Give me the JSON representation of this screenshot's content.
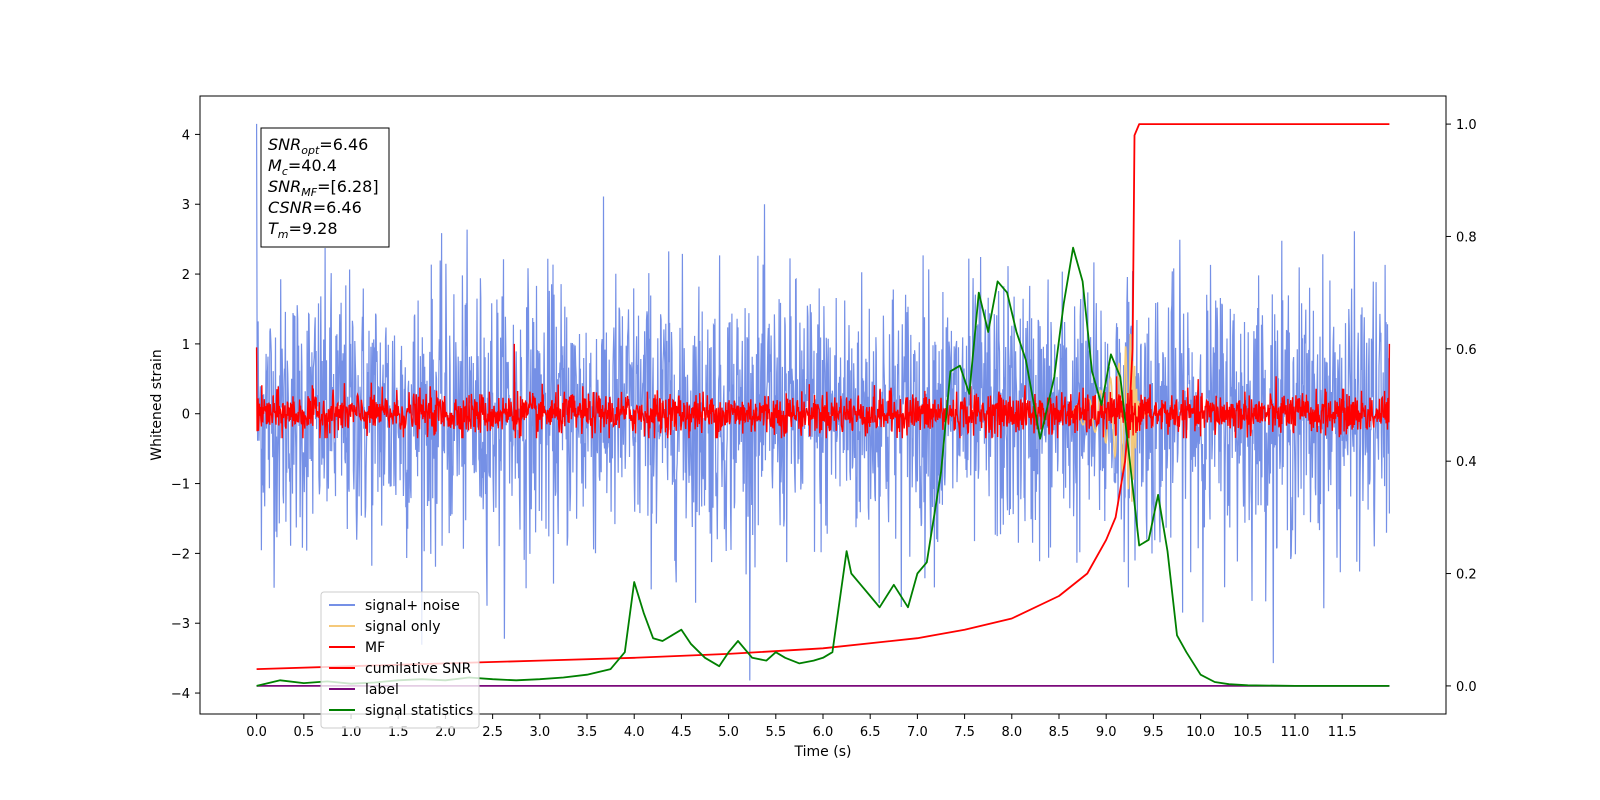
{
  "chart_data": {
    "type": "line",
    "xlabel": "Time (s)",
    "ylabel_left": "Whitened strain",
    "ylabel_right": "",
    "xlim": [
      -0.6,
      12.6
    ],
    "ylim_left": [
      -4.3,
      4.55
    ],
    "ylim_right": [
      -0.05,
      1.05
    ],
    "x_ticks": [
      "0.0",
      "0.5",
      "1.0",
      "1.5",
      "2.0",
      "2.5",
      "3.0",
      "3.5",
      "4.0",
      "4.5",
      "5.0",
      "5.5",
      "6.0",
      "6.5",
      "7.0",
      "7.5",
      "8.0",
      "8.5",
      "9.0",
      "9.5",
      "10.0",
      "10.5",
      "11.0",
      "11.5"
    ],
    "y_ticks_left": [
      "−4",
      "−3",
      "−2",
      "−1",
      "0",
      "1",
      "2",
      "3",
      "4"
    ],
    "y_ticks_right": [
      "0.0",
      "0.2",
      "0.4",
      "0.6",
      "0.8",
      "1.0"
    ],
    "grid": false,
    "legend_position": "lower-left",
    "info_box": {
      "lines": [
        {
          "main": "SNR",
          "sub": "opt",
          "value": "=6.46"
        },
        {
          "main": "M",
          "sub": "c",
          "value": "=40.4"
        },
        {
          "main": "SNR",
          "sub": "MF",
          "value": "=[6.28]"
        },
        {
          "main": "CSNR",
          "sub": "",
          "value": "=6.46"
        },
        {
          "main": "T",
          "sub": "m",
          "value": "=9.28"
        }
      ]
    },
    "series": [
      {
        "name": "signal+ noise",
        "color": "#7590e6",
        "axis": "left",
        "style": "noise",
        "x_range": [
          0,
          12
        ],
        "amplitude_std": 1.0
      },
      {
        "name": "signal only",
        "color": "#f5c97a",
        "axis": "left",
        "style": "chirp",
        "peak_time": 9.28,
        "peak_amplitude": 1.3
      },
      {
        "name": "MF",
        "color": "#ff0000",
        "axis": "left",
        "style": "mf_noise",
        "amplitude_std": 0.15,
        "edge_spikes": [
          [
            0.0,
            0.95
          ],
          [
            12.0,
            1.0
          ],
          [
            2.73,
            1.0
          ]
        ]
      },
      {
        "name": "cumilative SNR",
        "color": "#ff0000",
        "axis": "right",
        "x": [
          0.0,
          1.0,
          2.0,
          3.0,
          4.0,
          5.0,
          6.0,
          7.0,
          7.5,
          8.0,
          8.5,
          8.8,
          9.0,
          9.1,
          9.2,
          9.25,
          9.28,
          9.3,
          9.35,
          9.5,
          10.0,
          11.0,
          12.0
        ],
        "values": [
          0.03,
          0.035,
          0.04,
          0.045,
          0.05,
          0.057,
          0.067,
          0.085,
          0.1,
          0.12,
          0.16,
          0.2,
          0.26,
          0.3,
          0.4,
          0.5,
          0.6,
          0.98,
          1.0,
          1.0,
          1.0,
          1.0,
          1.0
        ]
      },
      {
        "name": "label",
        "color": "#7b0a7b",
        "axis": "right",
        "x": [
          0.0,
          12.0
        ],
        "values": [
          0.0,
          0.0
        ]
      },
      {
        "name": "signal statistics",
        "color": "#008000",
        "axis": "right",
        "x": [
          0.0,
          0.25,
          0.5,
          0.75,
          1.0,
          1.25,
          1.5,
          1.75,
          2.0,
          2.25,
          2.5,
          2.75,
          3.0,
          3.25,
          3.5,
          3.75,
          3.9,
          4.0,
          4.1,
          4.2,
          4.3,
          4.4,
          4.5,
          4.6,
          4.75,
          4.9,
          5.0,
          5.1,
          5.25,
          5.4,
          5.5,
          5.6,
          5.75,
          5.9,
          6.0,
          6.1,
          6.25,
          6.3,
          6.4,
          6.5,
          6.6,
          6.75,
          6.9,
          7.0,
          7.1,
          7.25,
          7.35,
          7.45,
          7.55,
          7.65,
          7.75,
          7.85,
          7.95,
          8.05,
          8.15,
          8.3,
          8.45,
          8.55,
          8.65,
          8.75,
          8.85,
          8.95,
          9.05,
          9.15,
          9.25,
          9.35,
          9.45,
          9.55,
          9.65,
          9.75,
          9.85,
          10.0,
          10.15,
          10.3,
          10.5,
          11.0,
          12.0
        ],
        "values": [
          0.0,
          0.01,
          0.005,
          0.008,
          0.004,
          0.006,
          0.01,
          0.012,
          0.01,
          0.015,
          0.012,
          0.01,
          0.012,
          0.015,
          0.02,
          0.03,
          0.06,
          0.185,
          0.13,
          0.085,
          0.08,
          0.09,
          0.1,
          0.075,
          0.05,
          0.035,
          0.06,
          0.08,
          0.05,
          0.045,
          0.06,
          0.05,
          0.04,
          0.045,
          0.05,
          0.06,
          0.24,
          0.2,
          0.18,
          0.16,
          0.14,
          0.18,
          0.14,
          0.2,
          0.22,
          0.38,
          0.56,
          0.57,
          0.52,
          0.7,
          0.63,
          0.72,
          0.7,
          0.63,
          0.58,
          0.44,
          0.55,
          0.68,
          0.78,
          0.72,
          0.56,
          0.5,
          0.59,
          0.55,
          0.4,
          0.25,
          0.26,
          0.34,
          0.24,
          0.09,
          0.06,
          0.02,
          0.007,
          0.003,
          0.001,
          0.0,
          0.0
        ]
      }
    ]
  }
}
